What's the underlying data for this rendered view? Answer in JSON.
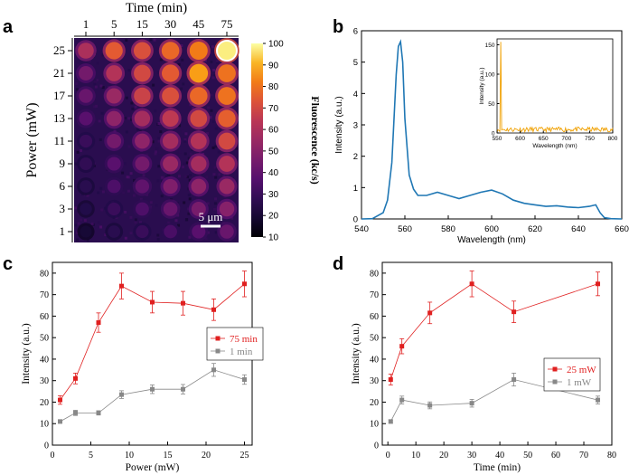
{
  "chart_data": [
    {
      "panel": "a",
      "type": "heatmap",
      "top_title": "Time (min)",
      "ylabel": "Power (mW)",
      "columns": [
        "1",
        "5",
        "15",
        "30",
        "45",
        "75"
      ],
      "rows": [
        "25",
        "21",
        "17",
        "13",
        "11",
        "9",
        "6",
        "3",
        "1"
      ],
      "colorbar_label": "Fluorescence (kc/s)",
      "colorbar_ticks": [
        "100",
        "90",
        "80",
        "70",
        "60",
        "50",
        "40",
        "30",
        "20",
        "10"
      ],
      "colorbar_range": [
        10,
        100
      ],
      "scalebar_label": "5 μm",
      "values": [
        [
          60,
          75,
          72,
          78,
          82,
          98
        ],
        [
          45,
          62,
          70,
          75,
          88,
          80
        ],
        [
          42,
          55,
          68,
          72,
          78,
          80
        ],
        [
          38,
          52,
          58,
          65,
          70,
          76
        ],
        [
          30,
          45,
          52,
          58,
          62,
          70
        ],
        [
          28,
          38,
          45,
          55,
          58,
          62
        ],
        [
          26,
          35,
          40,
          48,
          52,
          55
        ],
        [
          24,
          30,
          35,
          42,
          46,
          50
        ],
        [
          20,
          26,
          30,
          34,
          38,
          42
        ]
      ]
    },
    {
      "panel": "b",
      "type": "line",
      "xlabel": "Wavelength (nm)",
      "ylabel": "Intensity (a.u.)",
      "xlim": [
        540,
        660
      ],
      "ylim": [
        0,
        6
      ],
      "xticks": [
        540,
        560,
        580,
        600,
        620,
        640,
        660
      ],
      "yticks": [
        0,
        1,
        2,
        3,
        4,
        5,
        6
      ],
      "color": "#1f77b4",
      "x": [
        540,
        545,
        550,
        552,
        554,
        556,
        557,
        558,
        559,
        560,
        562,
        564,
        566,
        570,
        575,
        580,
        585,
        590,
        595,
        600,
        605,
        610,
        615,
        620,
        625,
        630,
        635,
        640,
        645,
        648,
        650,
        652,
        655,
        660
      ],
      "y": [
        0.0,
        0.01,
        0.2,
        0.6,
        1.8,
        4.6,
        5.5,
        5.65,
        5.0,
        3.2,
        1.4,
        0.95,
        0.75,
        0.75,
        0.85,
        0.75,
        0.65,
        0.75,
        0.85,
        0.92,
        0.8,
        0.6,
        0.5,
        0.45,
        0.4,
        0.42,
        0.38,
        0.36,
        0.4,
        0.45,
        0.2,
        0.04,
        0.01,
        0.0
      ],
      "inset": {
        "xlabel": "Wavelength (nm)",
        "ylabel": "Intensity (a.u.)",
        "xlim": [
          550,
          800
        ],
        "ylim": [
          0,
          160
        ],
        "xticks": [
          550,
          600,
          650,
          700,
          750,
          800
        ],
        "yticks": [
          0,
          50,
          100,
          150
        ],
        "color": "#f0a000",
        "peak_x": 558,
        "peak_y": 155,
        "baseline": 6
      }
    },
    {
      "panel": "c",
      "type": "line",
      "xlabel": "Power (mW)",
      "ylabel": "Intensity (a.u.)",
      "xlim": [
        0,
        26
      ],
      "ylim": [
        0,
        85
      ],
      "xticks": [
        0,
        5,
        10,
        15,
        20,
        25
      ],
      "yticks": [
        0,
        10,
        20,
        30,
        40,
        50,
        60,
        70,
        80
      ],
      "legend_position": "right",
      "series": [
        {
          "name": "75 min",
          "color": "#e02020",
          "x": [
            1,
            3,
            6,
            9,
            13,
            17,
            21,
            25
          ],
          "y": [
            21,
            31,
            57,
            74,
            66.5,
            66,
            63,
            75
          ],
          "err": [
            2,
            2.5,
            4.5,
            6,
            5,
            5.5,
            5,
            6
          ]
        },
        {
          "name": "1 min",
          "color": "#888888",
          "x": [
            1,
            3,
            6,
            9,
            13,
            17,
            21,
            25
          ],
          "y": [
            11,
            15,
            15,
            23.5,
            26,
            26,
            35,
            30.5
          ],
          "err": [
            0.8,
            1.2,
            1,
            1.8,
            2,
            2.2,
            3,
            2.2
          ]
        }
      ]
    },
    {
      "panel": "d",
      "type": "line",
      "xlabel": "Time (min)",
      "ylabel": "Intensity (a.u.)",
      "xlim": [
        -2,
        80
      ],
      "ylim": [
        0,
        85
      ],
      "xticks": [
        0,
        10,
        20,
        30,
        40,
        50,
        60,
        70,
        80
      ],
      "yticks": [
        0,
        10,
        20,
        30,
        40,
        50,
        60,
        70,
        80
      ],
      "legend_position": "right",
      "series": [
        {
          "name": "25 mW",
          "color": "#e02020",
          "x": [
            1,
            5,
            15,
            30,
            45,
            75
          ],
          "y": [
            30.5,
            46,
            61.5,
            75,
            62,
            75
          ],
          "err": [
            2.5,
            3.5,
            5,
            6,
            5,
            5.5
          ]
        },
        {
          "name": "1 mW",
          "color": "#888888",
          "x": [
            1,
            5,
            15,
            30,
            45,
            75
          ],
          "y": [
            11,
            21,
            18.5,
            19.5,
            30.5,
            21
          ],
          "err": [
            0.8,
            1.8,
            1.6,
            1.8,
            3,
            1.8
          ]
        }
      ]
    }
  ],
  "panel_labels": [
    "a",
    "b",
    "c",
    "d"
  ]
}
